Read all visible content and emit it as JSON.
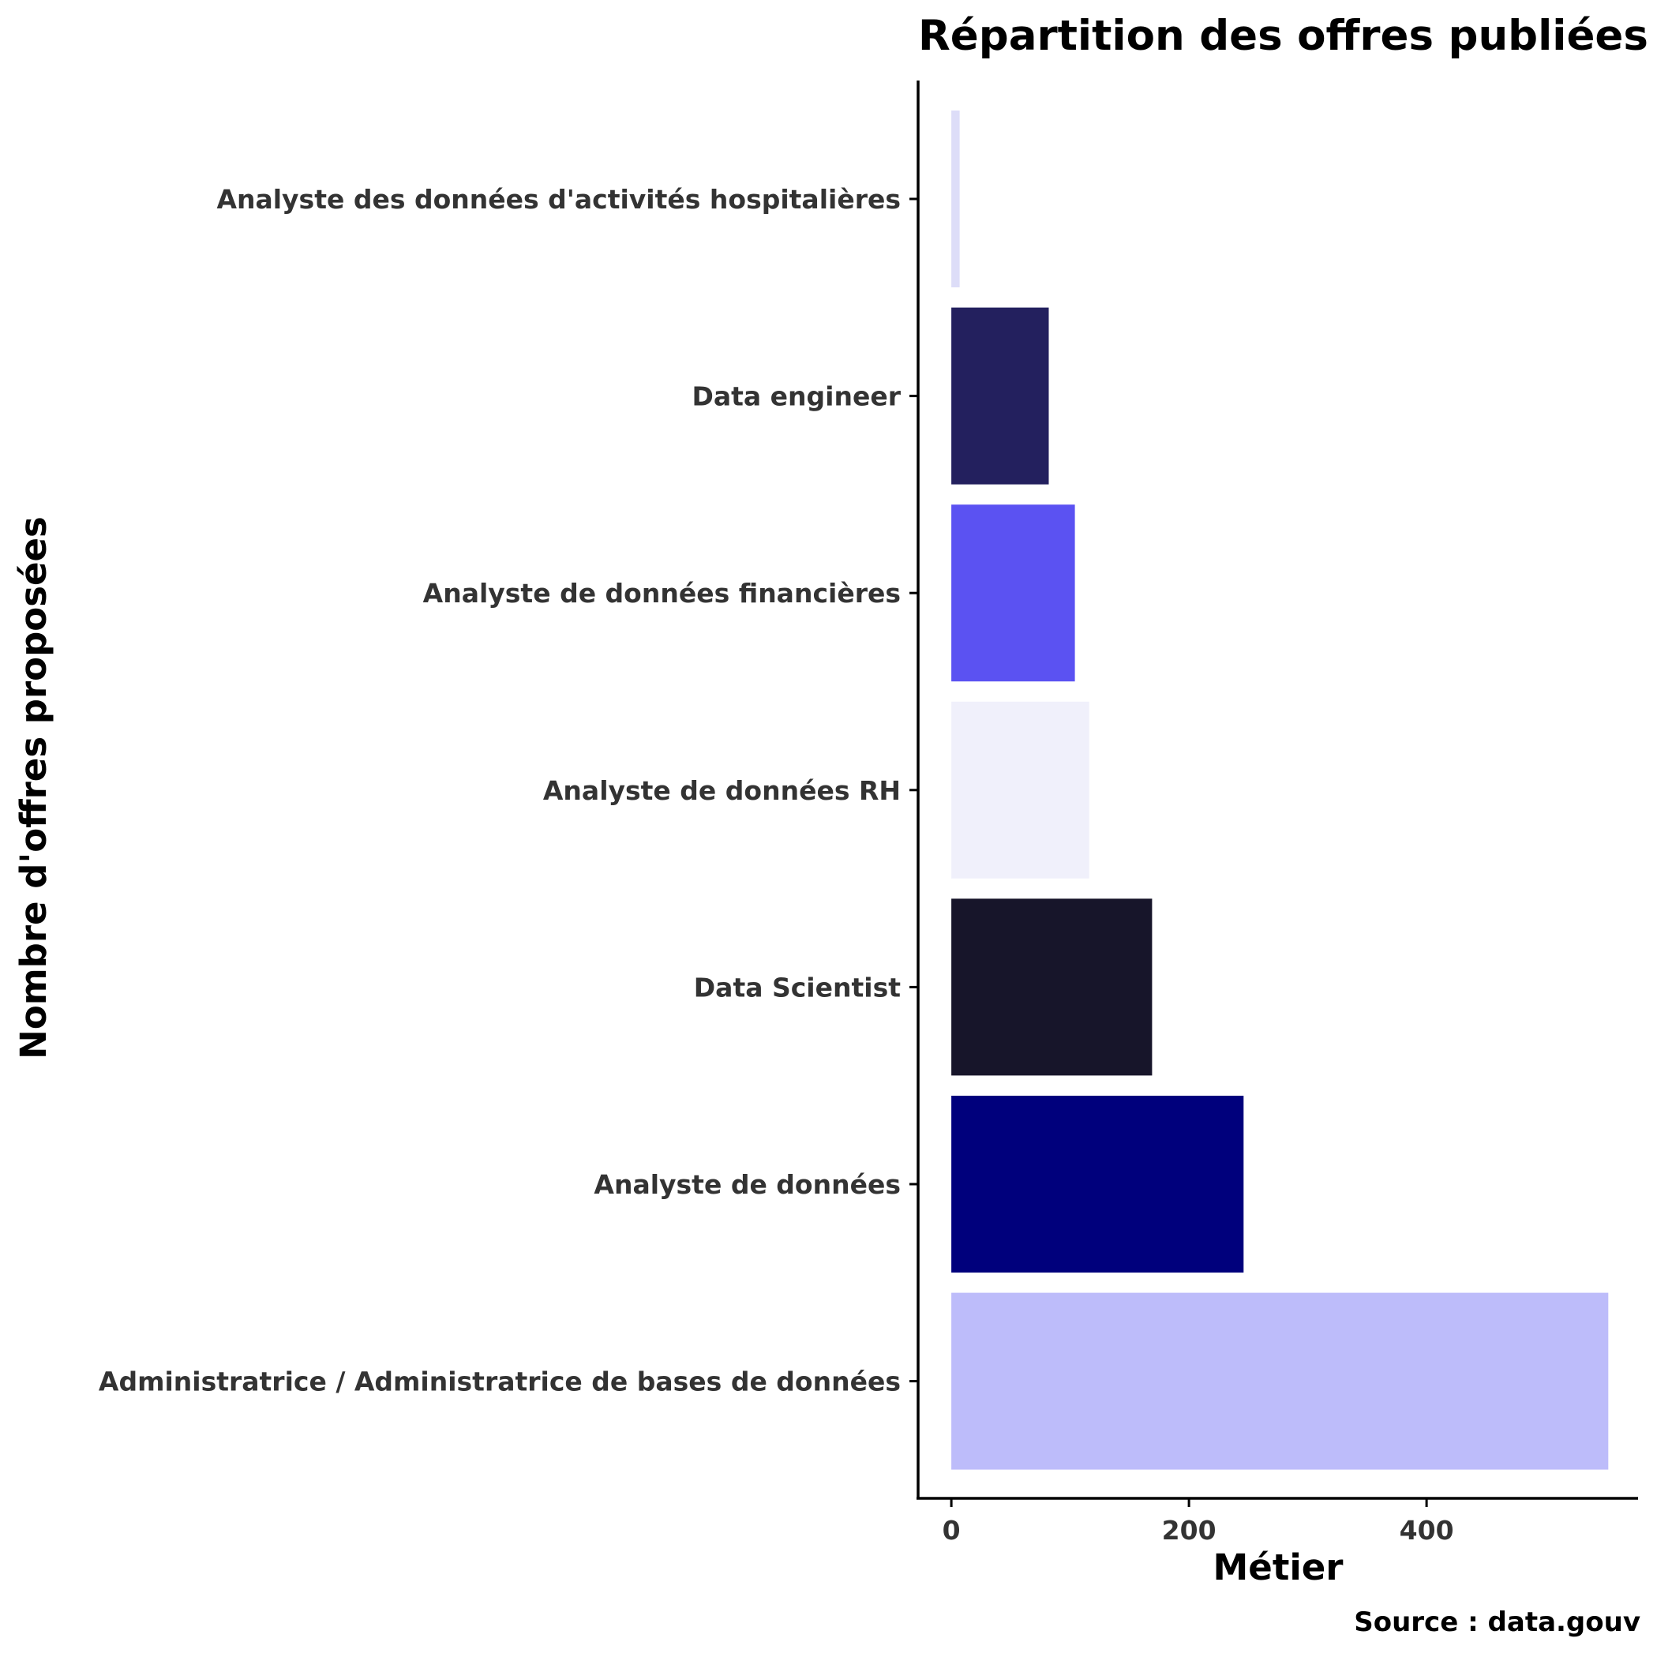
{
  "chart_data": {
    "type": "bar",
    "orientation": "horizontal",
    "title": "Répartition des offres publiées p",
    "xlabel": "Métier",
    "ylabel": "Nombre d'offres proposées",
    "caption": "Source : data.gouv",
    "categories": [
      "Analyste des données d'activités hospitalières",
      "Data engineer",
      "Analyste de données financières",
      "Analyste de données RH",
      "Data Scientist",
      "Analyste de données",
      "Administratrice / Administratrice de bases de données"
    ],
    "values": [
      7,
      82,
      104,
      116,
      169,
      246,
      553
    ],
    "colors": [
      "#DDDDF8",
      "#23205E",
      "#5B52F2",
      "#F0F0FB",
      "#17152A",
      "#00007C",
      "#BDBCFA"
    ],
    "x_ticks": [
      "0",
      "200",
      "400"
    ],
    "x_tick_values": [
      0,
      200,
      400
    ],
    "xlim": [
      -28,
      578
    ],
    "grid": false,
    "legend": "none"
  }
}
